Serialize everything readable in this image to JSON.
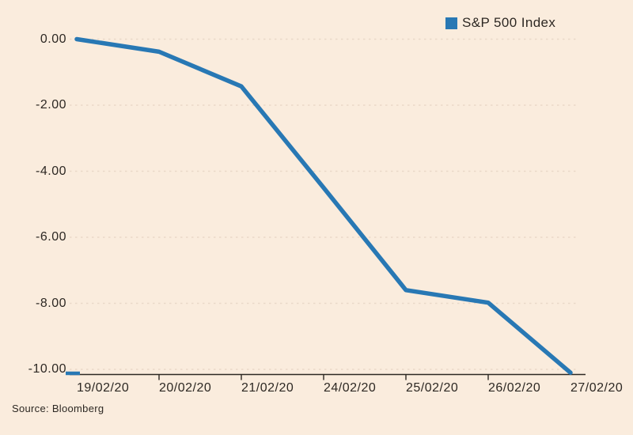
{
  "chart_data": {
    "type": "line",
    "title": "",
    "xlabel": "",
    "ylabel": "",
    "legend": [
      "S&P 500 Index"
    ],
    "legend_position": "top-right",
    "grid": "horizontal-dotted",
    "categories": [
      "19/02/20",
      "20/02/20",
      "21/02/20",
      "24/02/20",
      "25/02/20",
      "26/02/20",
      "27/02/20"
    ],
    "series": [
      {
        "name": "S&P 500 Index",
        "values": [
          0.0,
          -0.38,
          -1.43,
          -4.5,
          -7.6,
          -7.98,
          -10.1
        ]
      }
    ],
    "ylim": [
      -10.15,
      0
    ],
    "yticks": [
      "0.00",
      "-2.00",
      "-4.00",
      "-6.00",
      "-8.00",
      "-10.00"
    ],
    "ytick_values": [
      0,
      -2,
      -4,
      -6,
      -8,
      -10
    ]
  },
  "source": "Source: Bloomberg",
  "colors": {
    "background": "#faecdd",
    "line": "#2878b4",
    "grid": "#e9d8c8",
    "axis": "#2d2823",
    "text": "#2d2823"
  }
}
